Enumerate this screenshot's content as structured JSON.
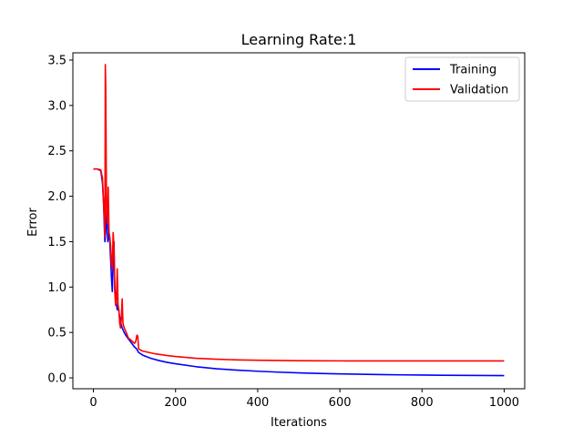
{
  "chart_data": {
    "type": "line",
    "title": "Learning Rate:1",
    "xlabel": "Iterations",
    "ylabel": "Error",
    "xlim": [
      -50,
      1050
    ],
    "ylim": [
      -0.12,
      3.58
    ],
    "xticks": [
      0,
      200,
      400,
      600,
      800,
      1000
    ],
    "yticks": [
      0.0,
      0.5,
      1.0,
      1.5,
      2.0,
      2.5,
      3.0,
      3.5
    ],
    "xtick_labels": [
      "0",
      "200",
      "400",
      "600",
      "800",
      "1000"
    ],
    "ytick_labels": [
      "0.0",
      "0.5",
      "1.0",
      "1.5",
      "2.0",
      "2.5",
      "3.0",
      "3.5"
    ],
    "grid": false,
    "legend": "top-right",
    "series": [
      {
        "name": "Training",
        "color": "#0000ff",
        "points": [
          [
            0,
            2.3
          ],
          [
            10,
            2.3
          ],
          [
            18,
            2.28
          ],
          [
            22,
            2.15
          ],
          [
            25,
            1.9
          ],
          [
            27,
            1.6
          ],
          [
            28,
            1.5
          ],
          [
            30,
            1.6
          ],
          [
            33,
            1.9
          ],
          [
            35,
            1.5
          ],
          [
            38,
            1.6
          ],
          [
            40,
            1.5
          ],
          [
            42,
            1.3
          ],
          [
            44,
            1.1
          ],
          [
            46,
            0.95
          ],
          [
            48,
            1.3
          ],
          [
            50,
            1.5
          ],
          [
            52,
            1.0
          ],
          [
            55,
            0.85
          ],
          [
            58,
            0.75
          ],
          [
            60,
            0.8
          ],
          [
            63,
            0.7
          ],
          [
            66,
            0.62
          ],
          [
            70,
            0.55
          ],
          [
            75,
            0.5
          ],
          [
            80,
            0.46
          ],
          [
            85,
            0.43
          ],
          [
            90,
            0.4
          ],
          [
            95,
            0.37
          ],
          [
            100,
            0.34
          ],
          [
            105,
            0.32
          ],
          [
            110,
            0.28
          ],
          [
            120,
            0.25
          ],
          [
            140,
            0.215
          ],
          [
            160,
            0.19
          ],
          [
            180,
            0.17
          ],
          [
            200,
            0.155
          ],
          [
            250,
            0.123
          ],
          [
            300,
            0.1
          ],
          [
            350,
            0.085
          ],
          [
            400,
            0.073
          ],
          [
            450,
            0.063
          ],
          [
            500,
            0.055
          ],
          [
            550,
            0.049
          ],
          [
            600,
            0.044
          ],
          [
            650,
            0.04
          ],
          [
            700,
            0.036
          ],
          [
            750,
            0.033
          ],
          [
            800,
            0.031
          ],
          [
            850,
            0.029
          ],
          [
            900,
            0.027
          ],
          [
            950,
            0.026
          ],
          [
            1000,
            0.025
          ]
        ]
      },
      {
        "name": "Validation",
        "color": "#ff0000",
        "points": [
          [
            0,
            2.3
          ],
          [
            10,
            2.3
          ],
          [
            18,
            2.29
          ],
          [
            22,
            2.2
          ],
          [
            25,
            1.9
          ],
          [
            27,
            1.7
          ],
          [
            28,
            1.55
          ],
          [
            29,
            3.45
          ],
          [
            30,
            3.2
          ],
          [
            32,
            1.8
          ],
          [
            34,
            1.7
          ],
          [
            35,
            1.85
          ],
          [
            36,
            2.1
          ],
          [
            38,
            1.6
          ],
          [
            40,
            1.55
          ],
          [
            42,
            1.45
          ],
          [
            44,
            1.25
          ],
          [
            46,
            1.2
          ],
          [
            48,
            1.6
          ],
          [
            50,
            1.45
          ],
          [
            52,
            0.95
          ],
          [
            54,
            0.8
          ],
          [
            56,
            0.85
          ],
          [
            58,
            1.2
          ],
          [
            60,
            0.8
          ],
          [
            62,
            0.75
          ],
          [
            64,
            0.6
          ],
          [
            66,
            0.55
          ],
          [
            68,
            0.65
          ],
          [
            70,
            0.87
          ],
          [
            72,
            0.6
          ],
          [
            75,
            0.55
          ],
          [
            80,
            0.5
          ],
          [
            85,
            0.44
          ],
          [
            90,
            0.42
          ],
          [
            95,
            0.4
          ],
          [
            100,
            0.38
          ],
          [
            103,
            0.4
          ],
          [
            106,
            0.47
          ],
          [
            108,
            0.46
          ],
          [
            110,
            0.32
          ],
          [
            115,
            0.305
          ],
          [
            120,
            0.295
          ],
          [
            150,
            0.265
          ],
          [
            180,
            0.245
          ],
          [
            200,
            0.235
          ],
          [
            250,
            0.215
          ],
          [
            300,
            0.205
          ],
          [
            350,
            0.198
          ],
          [
            400,
            0.194
          ],
          [
            450,
            0.191
          ],
          [
            500,
            0.189
          ],
          [
            550,
            0.188
          ],
          [
            600,
            0.187
          ],
          [
            700,
            0.186
          ],
          [
            800,
            0.186
          ],
          [
            900,
            0.186
          ],
          [
            1000,
            0.186
          ]
        ]
      }
    ]
  }
}
